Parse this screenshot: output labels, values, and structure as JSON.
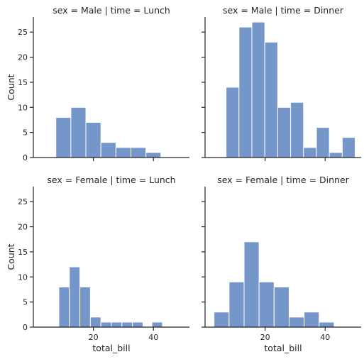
{
  "chart_data": {
    "type": "bar",
    "kind": "histogram",
    "facets": [
      {
        "title": "sex = Male | time = Lunch",
        "bins": [
          [
            7.5,
            12.5,
            8
          ],
          [
            12.5,
            17.5,
            10
          ],
          [
            17.5,
            22.5,
            7
          ],
          [
            22.5,
            27.5,
            3
          ],
          [
            27.5,
            32.5,
            2
          ],
          [
            32.5,
            37.5,
            2
          ],
          [
            37.5,
            42.5,
            1
          ]
        ]
      },
      {
        "title": "sex = Male | time = Dinner",
        "bins": [
          [
            7,
            11.3,
            14
          ],
          [
            11.3,
            15.6,
            26
          ],
          [
            15.6,
            19.9,
            27
          ],
          [
            19.9,
            24.2,
            23
          ],
          [
            24.2,
            28.5,
            10
          ],
          [
            28.5,
            32.8,
            11
          ],
          [
            32.8,
            37.1,
            2
          ],
          [
            37.1,
            41.4,
            6
          ],
          [
            41.4,
            45.7,
            1
          ],
          [
            45.7,
            50,
            4
          ]
        ]
      },
      {
        "title": "sex = Female | time = Lunch",
        "bins": [
          [
            8.5,
            12,
            8
          ],
          [
            12,
            15.5,
            12
          ],
          [
            15.5,
            19,
            8
          ],
          [
            19,
            22.5,
            2
          ],
          [
            22.5,
            26,
            1
          ],
          [
            26,
            29.5,
            1
          ],
          [
            29.5,
            33,
            1
          ],
          [
            33,
            36.5,
            1
          ],
          [
            39.5,
            43,
            1
          ]
        ]
      },
      {
        "title": "sex = Female | time = Dinner",
        "bins": [
          [
            3,
            8,
            3
          ],
          [
            8,
            13,
            9
          ],
          [
            13,
            18,
            17
          ],
          [
            18,
            23,
            9
          ],
          [
            23,
            28,
            8
          ],
          [
            28,
            33,
            2
          ],
          [
            33,
            38,
            3
          ],
          [
            38,
            43,
            1
          ]
        ]
      }
    ],
    "xlabel": "total_bill",
    "ylabel": "Count",
    "xlim": [
      0,
      52
    ],
    "ylim": [
      0,
      28
    ],
    "xticks": [
      20,
      40
    ],
    "yticks": [
      0,
      5,
      10,
      15,
      20,
      25
    ],
    "bar_color": "#7596c8"
  }
}
